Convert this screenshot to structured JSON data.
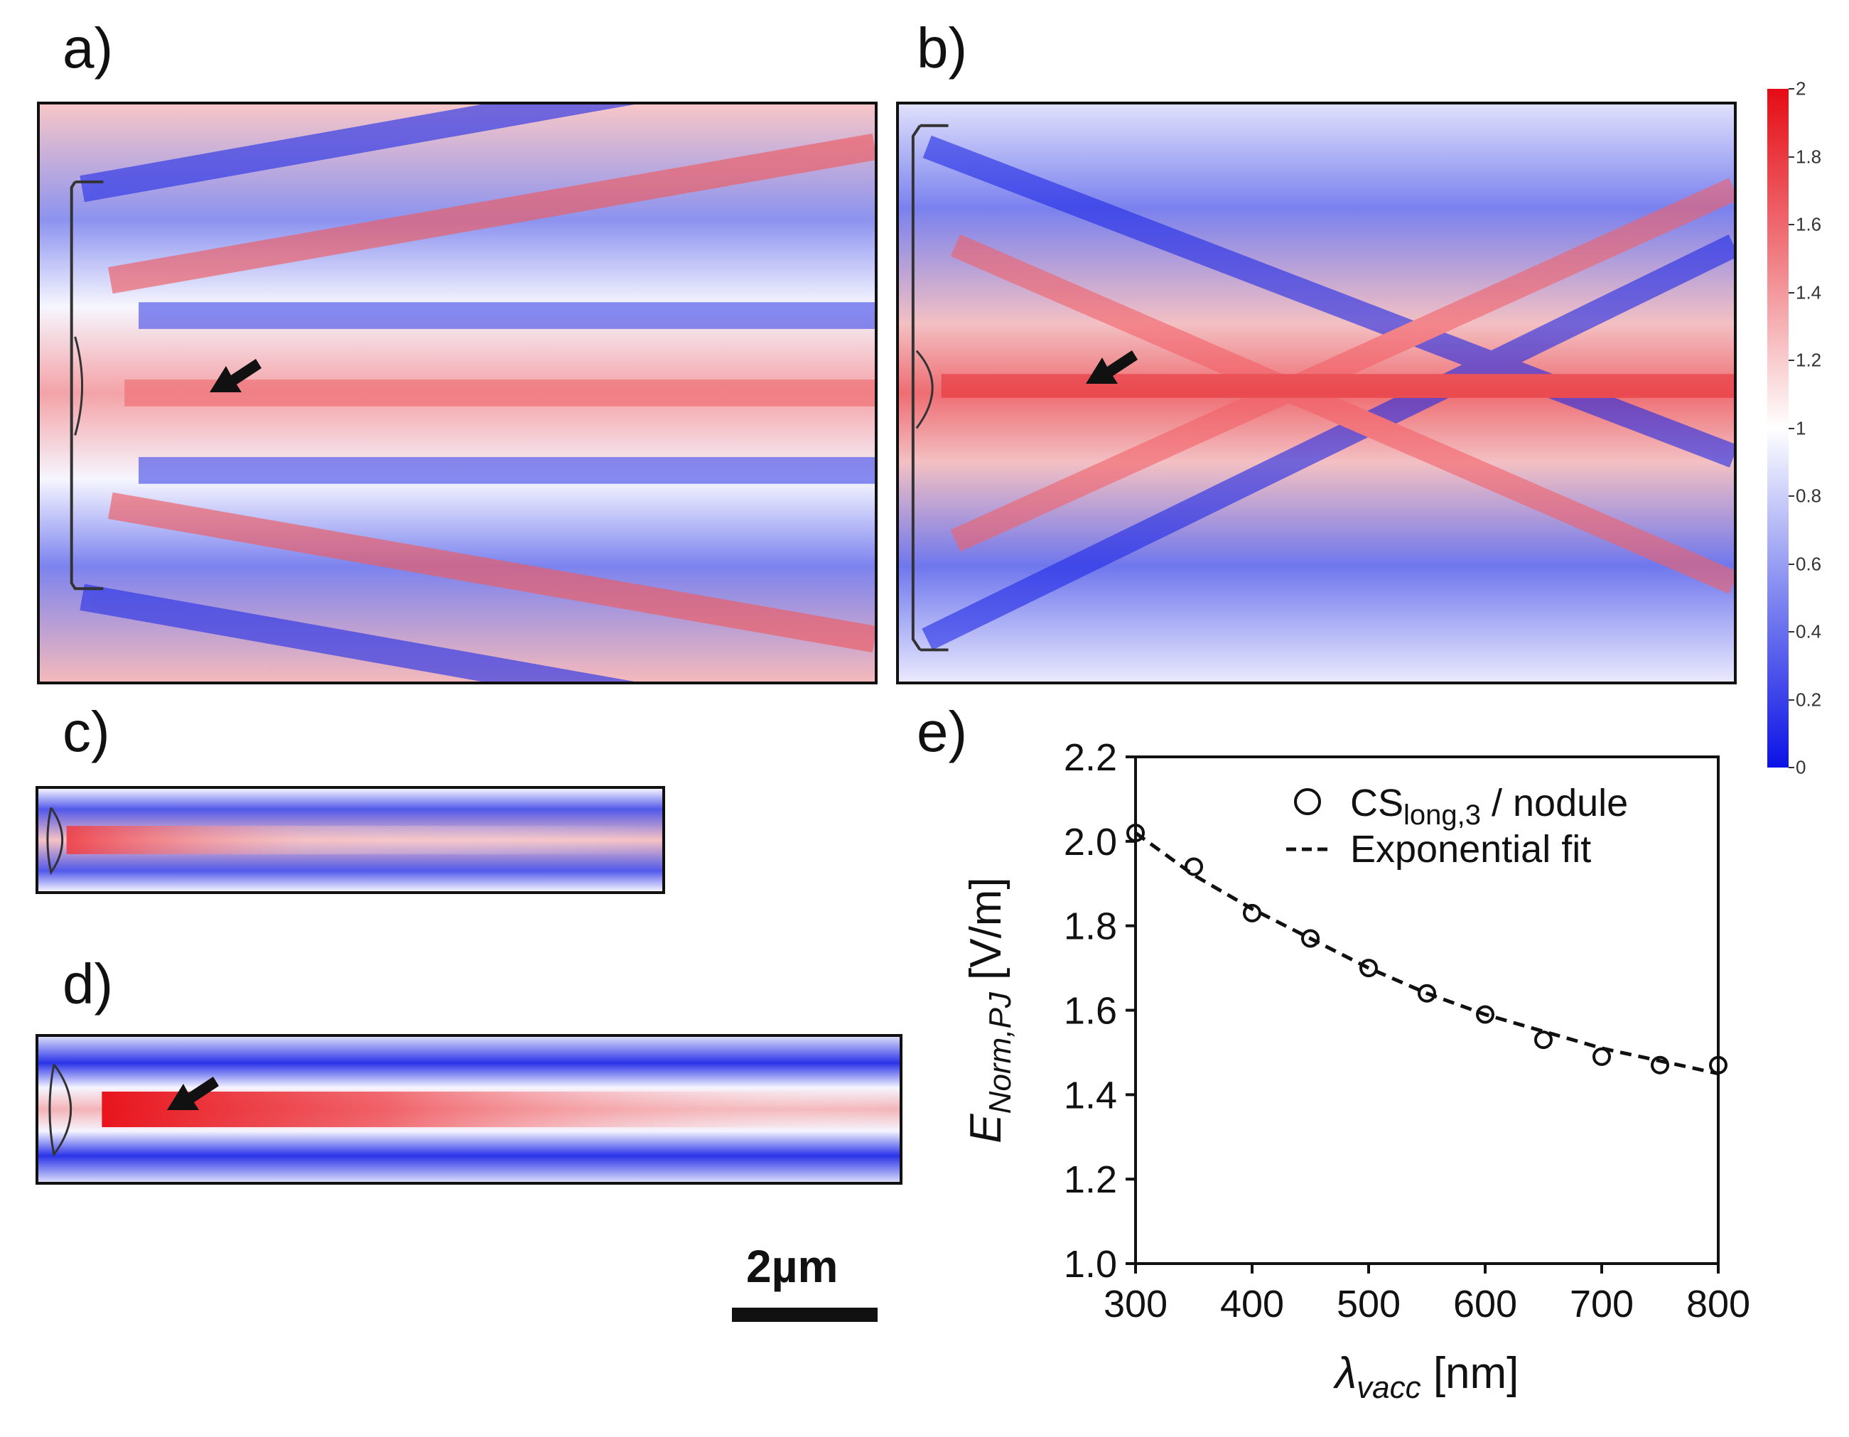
{
  "panels": {
    "a": "a)",
    "b": "b)",
    "c": "c)",
    "d": "d)",
    "e": "e)"
  },
  "colorbar": {
    "ticks": [
      "0",
      "0.2",
      "0.4",
      "0.6",
      "0.8",
      "1",
      "1.2",
      "1.4",
      "1.6",
      "1.8",
      "2"
    ],
    "min": 0,
    "max": 2,
    "low_color": "#0b12e6",
    "mid_color": "#ffffff",
    "high_color": "#e60b14"
  },
  "scalebar": {
    "label": "2µm"
  },
  "chart_data": {
    "type": "scatter",
    "title": "",
    "xlabel_main": "λ",
    "xlabel_sub": "vacc",
    "xlabel_unit": "[nm]",
    "ylabel_main": "E",
    "ylabel_sub": "Norm,PJ",
    "ylabel_unit": "[V/m]",
    "xlim": [
      300,
      800
    ],
    "ylim": [
      1.0,
      2.2
    ],
    "xticks": [
      "300",
      "400",
      "500",
      "600",
      "700",
      "800"
    ],
    "yticks": [
      "1.0",
      "1.2",
      "1.4",
      "1.6",
      "1.8",
      "2.0",
      "2.2"
    ],
    "legend_position": "top-right",
    "series": [
      {
        "name": "CS",
        "name_sub": "long,3",
        "name_suffix": " / nodule",
        "marker": "open-circle",
        "x": [
          300,
          350,
          400,
          450,
          500,
          550,
          600,
          650,
          700,
          750,
          800
        ],
        "values": [
          2.02,
          1.94,
          1.83,
          1.77,
          1.7,
          1.64,
          1.59,
          1.53,
          1.49,
          1.47,
          1.47
        ]
      },
      {
        "name": "Exponential fit",
        "style": "dashed",
        "x": [
          300,
          350,
          400,
          450,
          500,
          550,
          600,
          650,
          700,
          750,
          800
        ],
        "values": [
          2.02,
          1.92,
          1.84,
          1.77,
          1.7,
          1.64,
          1.59,
          1.55,
          1.51,
          1.48,
          1.45
        ]
      }
    ]
  }
}
